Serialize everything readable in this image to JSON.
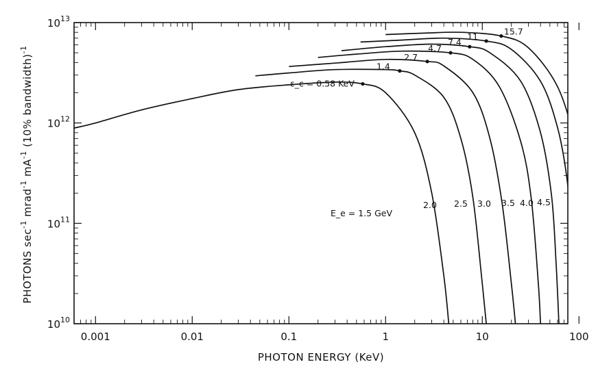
{
  "chart_data": {
    "type": "line",
    "title": "",
    "xlabel": "PHOTON ENERGY (KeV)",
    "ylabel_parts": [
      "PHOTONS sec",
      "-1",
      " mrad",
      "-1",
      " mA",
      "-1",
      " (10% bandwidth)",
      "-1"
    ],
    "x_scale": "log",
    "y_scale": "log",
    "xlim": [
      0.0006,
      120
    ],
    "ylim": [
      10000000000.0,
      10000000000000.0
    ],
    "grid": false,
    "x_ticks": [
      {
        "value": 0.001,
        "label": "0.001"
      },
      {
        "value": 0.01,
        "label": "0.01"
      },
      {
        "value": 0.1,
        "label": "0.1"
      },
      {
        "value": 1,
        "label": "1"
      },
      {
        "value": 10,
        "label": "10"
      },
      {
        "value": 100,
        "label": "100"
      }
    ],
    "y_ticks": [
      {
        "value": 10000000000.0,
        "base": "10",
        "exp": "10"
      },
      {
        "value": 100000000000.0,
        "base": "10",
        "exp": "11"
      },
      {
        "value": 1000000000000.0,
        "base": "10",
        "exp": "12"
      },
      {
        "value": 10000000000000.0,
        "base": "10",
        "exp": "13"
      }
    ],
    "series": [
      {
        "energy_label": "E_e = 1.5 GeV",
        "critical_label": "ε_c = 0.58 KeV",
        "x": [
          0.0006,
          0.001,
          0.003,
          0.01,
          0.03,
          0.1,
          0.3,
          0.58,
          1,
          2,
          3,
          4,
          4.5
        ],
        "y": [
          890000000000.0,
          1000000000000.0,
          1350000000000.0,
          1750000000000.0,
          2150000000000.0,
          2400000000000.0,
          2550000000000.0,
          2450000000000.0,
          2000000000000.0,
          800000000000.0,
          200000000000.0,
          30000000000.0,
          10000000000.0
        ]
      },
      {
        "energy_label": "2.0",
        "critical_label": "1.4",
        "x": [
          0.045,
          0.1,
          0.3,
          1,
          1.4,
          2,
          4,
          6,
          8,
          10,
          11
        ],
        "y": [
          2950000000000.0,
          3150000000000.0,
          3400000000000.0,
          3400000000000.0,
          3300000000000.0,
          3000000000000.0,
          1800000000000.0,
          700000000000.0,
          180000000000.0,
          25000000000.0,
          10000000000.0
        ]
      },
      {
        "energy_label": "2.5",
        "critical_label": "2.7",
        "x": [
          0.1,
          0.3,
          1,
          2.7,
          4,
          8,
          12,
          16,
          20,
          22
        ],
        "y": [
          3650000000000.0,
          3950000000000.0,
          4300000000000.0,
          4100000000000.0,
          3700000000000.0,
          2000000000000.0,
          700000000000.0,
          160000000000.0,
          25000000000.0,
          10000000000.0
        ]
      },
      {
        "energy_label": "3.0",
        "critical_label": "4.7",
        "x": [
          0.2,
          0.5,
          1.5,
          4.7,
          8,
          15,
          25,
          32,
          38,
          40
        ],
        "y": [
          4500000000000.0,
          4850000000000.0,
          5200000000000.0,
          5000000000000.0,
          4300000000000.0,
          2300000000000.0,
          650000000000.0,
          180000000000.0,
          25000000000.0,
          10000000000.0
        ]
      },
      {
        "energy_label": "3.5",
        "critical_label": "7.4",
        "x": [
          0.35,
          1,
          3,
          7.4,
          12,
          25,
          40,
          52,
          58,
          62
        ],
        "y": [
          5250000000000.0,
          5750000000000.0,
          6100000000000.0,
          5750000000000.0,
          5000000000000.0,
          2600000000000.0,
          800000000000.0,
          190000000000.0,
          40000000000.0,
          10000000000.0
        ]
      },
      {
        "energy_label": "4.0",
        "critical_label": "11",
        "x": [
          0.55,
          1.5,
          4,
          11,
          20,
          40,
          60,
          75,
          85,
          88
        ],
        "y": [
          6400000000000.0,
          6700000000000.0,
          7000000000000.0,
          6550000000000.0,
          5400000000000.0,
          2600000000000.0,
          900000000000.0,
          280000000000.0,
          70000000000.0,
          14000000000.0
        ]
      },
      {
        "energy_label": "4.5",
        "critical_label": "15.7",
        "x": [
          1,
          2.5,
          6,
          15.7,
          30,
          60,
          90,
          108
        ],
        "y": [
          7600000000000.0,
          7850000000000.0,
          8000000000000.0,
          7350000000000.0,
          5600000000000.0,
          2300000000000.0,
          650000000000.0,
          160000000000.0
        ]
      }
    ]
  }
}
